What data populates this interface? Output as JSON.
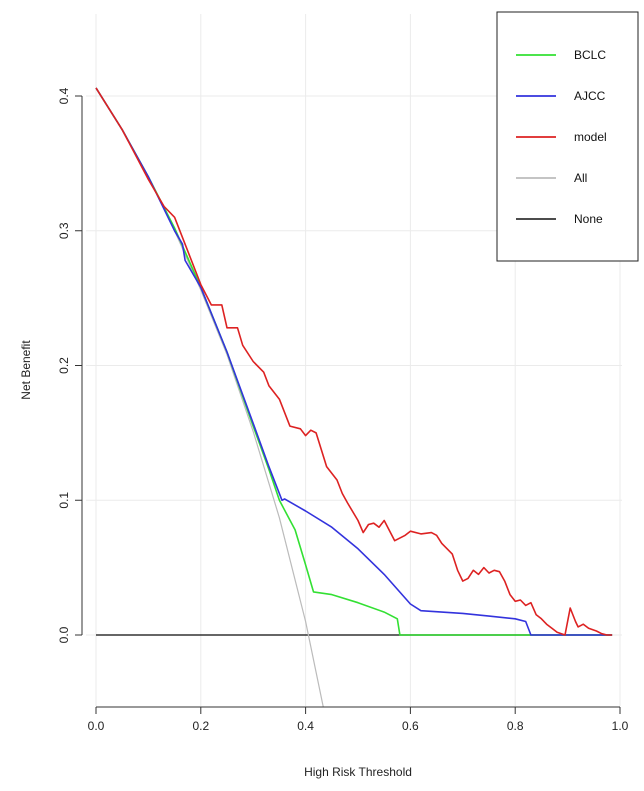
{
  "chart_data": {
    "type": "line",
    "xlabel": "High Risk Threshold",
    "ylabel": "Net Benefit",
    "xlim": [
      0,
      1
    ],
    "ylim": [
      -0.07,
      0.47
    ],
    "x_ticks": [
      "0.0",
      "0.2",
      "0.4",
      "0.6",
      "0.8",
      "1.0"
    ],
    "y_ticks": [
      "0.0",
      "0.1",
      "0.2",
      "0.3",
      "0.4"
    ],
    "grid": true,
    "legend_position": "top-right",
    "series": [
      {
        "name": "BCLC",
        "color": "#33e033",
        "points": [
          [
            0,
            0.406
          ],
          [
            0.05,
            0.375
          ],
          [
            0.1,
            0.34
          ],
          [
            0.15,
            0.302
          ],
          [
            0.2,
            0.258
          ],
          [
            0.25,
            0.21
          ],
          [
            0.3,
            0.155
          ],
          [
            0.33,
            0.123
          ],
          [
            0.35,
            0.1
          ],
          [
            0.38,
            0.078
          ],
          [
            0.4,
            0.052
          ],
          [
            0.415,
            0.032
          ],
          [
            0.45,
            0.03
          ],
          [
            0.5,
            0.024
          ],
          [
            0.55,
            0.017
          ],
          [
            0.575,
            0.012
          ],
          [
            0.58,
            0.0
          ],
          [
            0.6,
            0.0
          ],
          [
            0.8,
            0.0
          ],
          [
            0.985,
            0.0
          ]
        ]
      },
      {
        "name": "AJCC",
        "color": "#3333dd",
        "points": [
          [
            0,
            0.406
          ],
          [
            0.05,
            0.375
          ],
          [
            0.1,
            0.34
          ],
          [
            0.15,
            0.3
          ],
          [
            0.165,
            0.29
          ],
          [
            0.17,
            0.278
          ],
          [
            0.2,
            0.258
          ],
          [
            0.25,
            0.21
          ],
          [
            0.3,
            0.157
          ],
          [
            0.33,
            0.125
          ],
          [
            0.355,
            0.1
          ],
          [
            0.36,
            0.101
          ],
          [
            0.4,
            0.092
          ],
          [
            0.45,
            0.08
          ],
          [
            0.5,
            0.064
          ],
          [
            0.55,
            0.045
          ],
          [
            0.6,
            0.023
          ],
          [
            0.62,
            0.018
          ],
          [
            0.7,
            0.016
          ],
          [
            0.75,
            0.014
          ],
          [
            0.8,
            0.012
          ],
          [
            0.82,
            0.01
          ],
          [
            0.83,
            0.0
          ],
          [
            0.9,
            0.0
          ],
          [
            0.985,
            0.0
          ]
        ]
      },
      {
        "name": "model",
        "color": "#dd2222",
        "points": [
          [
            0,
            0.406
          ],
          [
            0.05,
            0.375
          ],
          [
            0.1,
            0.338
          ],
          [
            0.13,
            0.318
          ],
          [
            0.15,
            0.31
          ],
          [
            0.17,
            0.29
          ],
          [
            0.19,
            0.27
          ],
          [
            0.2,
            0.26
          ],
          [
            0.22,
            0.245
          ],
          [
            0.24,
            0.245
          ],
          [
            0.25,
            0.228
          ],
          [
            0.27,
            0.228
          ],
          [
            0.28,
            0.215
          ],
          [
            0.3,
            0.203
          ],
          [
            0.32,
            0.195
          ],
          [
            0.33,
            0.185
          ],
          [
            0.35,
            0.175
          ],
          [
            0.37,
            0.155
          ],
          [
            0.39,
            0.153
          ],
          [
            0.4,
            0.148
          ],
          [
            0.41,
            0.152
          ],
          [
            0.42,
            0.15
          ],
          [
            0.44,
            0.125
          ],
          [
            0.46,
            0.115
          ],
          [
            0.47,
            0.105
          ],
          [
            0.48,
            0.098
          ],
          [
            0.5,
            0.085
          ],
          [
            0.51,
            0.076
          ],
          [
            0.52,
            0.082
          ],
          [
            0.53,
            0.083
          ],
          [
            0.54,
            0.08
          ],
          [
            0.55,
            0.085
          ],
          [
            0.57,
            0.07
          ],
          [
            0.59,
            0.074
          ],
          [
            0.6,
            0.077
          ],
          [
            0.62,
            0.075
          ],
          [
            0.64,
            0.076
          ],
          [
            0.65,
            0.074
          ],
          [
            0.66,
            0.068
          ],
          [
            0.68,
            0.06
          ],
          [
            0.69,
            0.048
          ],
          [
            0.7,
            0.04
          ],
          [
            0.71,
            0.042
          ],
          [
            0.72,
            0.048
          ],
          [
            0.73,
            0.045
          ],
          [
            0.74,
            0.05
          ],
          [
            0.75,
            0.046
          ],
          [
            0.76,
            0.048
          ],
          [
            0.77,
            0.047
          ],
          [
            0.78,
            0.04
          ],
          [
            0.79,
            0.03
          ],
          [
            0.8,
            0.025
          ],
          [
            0.81,
            0.026
          ],
          [
            0.82,
            0.022
          ],
          [
            0.83,
            0.024
          ],
          [
            0.84,
            0.015
          ],
          [
            0.85,
            0.012
          ],
          [
            0.86,
            0.008
          ],
          [
            0.87,
            0.005
          ],
          [
            0.88,
            0.002
          ],
          [
            0.895,
            0.0
          ],
          [
            0.905,
            0.02
          ],
          [
            0.915,
            0.01
          ],
          [
            0.92,
            0.006
          ],
          [
            0.93,
            0.008
          ],
          [
            0.94,
            0.005
          ],
          [
            0.955,
            0.003
          ],
          [
            0.965,
            0.001
          ],
          [
            0.975,
            0.0
          ],
          [
            0.985,
            0.0
          ]
        ]
      },
      {
        "name": "All",
        "color": "#bbbbbb",
        "points": [
          [
            0,
            0.406
          ],
          [
            0.05,
            0.375
          ],
          [
            0.1,
            0.34
          ],
          [
            0.15,
            0.3
          ],
          [
            0.2,
            0.256
          ],
          [
            0.25,
            0.208
          ],
          [
            0.3,
            0.151
          ],
          [
            0.35,
            0.087
          ],
          [
            0.4,
            0.01
          ],
          [
            0.45,
            -0.084
          ]
        ]
      },
      {
        "name": "None",
        "color": "#333333",
        "points": [
          [
            0,
            0
          ],
          [
            0.985,
            0
          ]
        ]
      }
    ]
  }
}
